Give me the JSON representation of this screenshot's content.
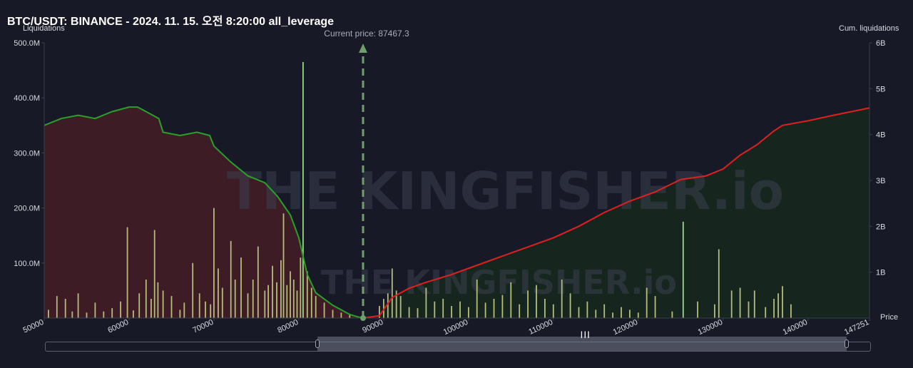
{
  "title": "BTC/USDT: BINANCE - 2024. 11. 15. 오전 8:20:00 all_leverage",
  "watermark": "THE KINGFISHER.io",
  "chart_data": {
    "type": "bar",
    "left_axis_title": "Liquidations",
    "right_axis_title": "Cum. liquidations",
    "x_axis_title": "Price",
    "xlim": [
      50000,
      147251
    ],
    "ylim_left": [
      0,
      500000000
    ],
    "ylim_right": [
      0,
      6000000000
    ],
    "x_ticks": [
      "50000",
      "60000",
      "70000",
      "80000",
      "90000",
      "100000",
      "110000",
      "120000",
      "130000",
      "140000",
      "147251"
    ],
    "left_ticks": [
      "500.0M",
      "400.0M",
      "300.0M",
      "200.0M",
      "100.0M"
    ],
    "right_ticks": [
      "6B",
      "5B",
      "4B",
      "3B",
      "2B",
      "1B"
    ],
    "current_price": 87467.3,
    "current_price_label": "Current price: 87467.3",
    "colors": {
      "short_cum_line": "#e02020",
      "long_cum_line": "#2aa02a",
      "long_fill": "#3d1c26",
      "short_fill": "#16261f",
      "bar_color": "#b5bd78",
      "highlight_bar_color": "#9ad888",
      "price_marker": "#6f9f6a"
    },
    "long_cum_curve": [
      [
        50000,
        4200000000.0
      ],
      [
        52000,
        4350000000.0
      ],
      [
        54000,
        4420000000.0
      ],
      [
        56000,
        4350000000.0
      ],
      [
        58000,
        4500000000.0
      ],
      [
        60000,
        4600000000.0
      ],
      [
        61000,
        4600000000.0
      ],
      [
        62000,
        4500000000.0
      ],
      [
        63500,
        4350000000.0
      ],
      [
        64000,
        4050000000.0
      ],
      [
        66000,
        3980000000.0
      ],
      [
        68000,
        4050000000.0
      ],
      [
        69500,
        3980000000.0
      ],
      [
        70000,
        3750000000.0
      ],
      [
        72000,
        3400000000.0
      ],
      [
        74000,
        3100000000.0
      ],
      [
        76000,
        2950000000.0
      ],
      [
        77500,
        2650000000.0
      ],
      [
        79000,
        2250000000.0
      ],
      [
        80000,
        1750000000.0
      ],
      [
        81000,
        950000000.0
      ],
      [
        82000,
        550000000.0
      ],
      [
        84000,
        280000000.0
      ],
      [
        86000,
        80000000.0
      ],
      [
        87467,
        0.0
      ]
    ],
    "short_cum_curve": [
      [
        87467,
        0.0
      ],
      [
        89500,
        50000000.0
      ],
      [
        91000,
        450000000.0
      ],
      [
        93000,
        650000000.0
      ],
      [
        95000,
        780000000.0
      ],
      [
        98000,
        950000000.0
      ],
      [
        101000,
        1150000000.0
      ],
      [
        104000,
        1350000000.0
      ],
      [
        107000,
        1550000000.0
      ],
      [
        110000,
        1750000000.0
      ],
      [
        113000,
        2000000000.0
      ],
      [
        116000,
        2300000000.0
      ],
      [
        119000,
        2550000000.0
      ],
      [
        122000,
        2750000000.0
      ],
      [
        125000,
        3020000000.0
      ],
      [
        128000,
        3100000000.0
      ],
      [
        130000,
        3250000000.0
      ],
      [
        132000,
        3550000000.0
      ],
      [
        134000,
        3780000000.0
      ],
      [
        136000,
        4080000000.0
      ],
      [
        137000,
        4200000000.0
      ],
      [
        140000,
        4300000000.0
      ],
      [
        143000,
        4420000000.0
      ],
      [
        147251,
        4580000000.0
      ]
    ],
    "bars": [
      [
        50500,
        15000000.0
      ],
      [
        51500,
        40000000.0
      ],
      [
        52500,
        35000000.0
      ],
      [
        53300,
        12000000.0
      ],
      [
        54000,
        45000000.0
      ],
      [
        55000,
        10000000.0
      ],
      [
        56000,
        28000000.0
      ],
      [
        57000,
        12000000.0
      ],
      [
        58000,
        18000000.0
      ],
      [
        59000,
        30000000.0
      ],
      [
        59800,
        165000000.0
      ],
      [
        60500,
        14000000.0
      ],
      [
        61200,
        45000000.0
      ],
      [
        62000,
        70000000.0
      ],
      [
        62600,
        35000000.0
      ],
      [
        63000,
        160000000.0
      ],
      [
        63400,
        65000000.0
      ],
      [
        64000,
        50000000.0
      ],
      [
        65000,
        40000000.0
      ],
      [
        66000,
        15000000.0
      ],
      [
        66500,
        28000000.0
      ],
      [
        67500,
        100000000.0
      ],
      [
        68300,
        45000000.0
      ],
      [
        69000,
        30000000.0
      ],
      [
        69600,
        25000000.0
      ],
      [
        70000,
        200000000.0
      ],
      [
        70500,
        90000000.0
      ],
      [
        71000,
        55000000.0
      ],
      [
        72000,
        140000000.0
      ],
      [
        72500,
        70000000.0
      ],
      [
        73200,
        110000000.0
      ],
      [
        74000,
        45000000.0
      ],
      [
        74600,
        70000000.0
      ],
      [
        75200,
        130000000.0
      ],
      [
        76000,
        50000000.0
      ],
      [
        76400,
        60000000.0
      ],
      [
        76900,
        95000000.0
      ],
      [
        77400,
        65000000.0
      ],
      [
        77900,
        105000000.0
      ],
      [
        78200,
        190000000.0
      ],
      [
        78600,
        60000000.0
      ],
      [
        79000,
        85000000.0
      ],
      [
        79400,
        70000000.0
      ],
      [
        79800,
        50000000.0
      ],
      [
        80200,
        110000000.0
      ],
      [
        80500,
        465000000.0
      ],
      [
        81000,
        85000000.0
      ],
      [
        81500,
        55000000.0
      ],
      [
        82000,
        40000000.0
      ],
      [
        83000,
        28000000.0
      ],
      [
        84000,
        15000000.0
      ],
      [
        85000,
        10000000.0
      ],
      [
        86000,
        6000000.0
      ],
      [
        89500,
        22000000.0
      ],
      [
        90000,
        35000000.0
      ],
      [
        90500,
        45000000.0
      ],
      [
        91000,
        90000000.0
      ],
      [
        91500,
        50000000.0
      ],
      [
        92000,
        40000000.0
      ],
      [
        93000,
        20000000.0
      ],
      [
        94000,
        18000000.0
      ],
      [
        95000,
        55000000.0
      ],
      [
        96000,
        30000000.0
      ],
      [
        97000,
        35000000.0
      ],
      [
        98000,
        22000000.0
      ],
      [
        99000,
        30000000.0
      ],
      [
        100000,
        20000000.0
      ],
      [
        101000,
        70000000.0
      ],
      [
        102000,
        28000000.0
      ],
      [
        103000,
        35000000.0
      ],
      [
        104000,
        42000000.0
      ],
      [
        105000,
        65000000.0
      ],
      [
        106000,
        25000000.0
      ],
      [
        107000,
        50000000.0
      ],
      [
        108000,
        60000000.0
      ],
      [
        109000,
        35000000.0
      ],
      [
        110000,
        25000000.0
      ],
      [
        111000,
        70000000.0
      ],
      [
        112000,
        45000000.0
      ],
      [
        113000,
        20000000.0
      ],
      [
        114000,
        30000000.0
      ],
      [
        115000,
        15000000.0
      ],
      [
        116000,
        25000000.0
      ],
      [
        117000,
        10000000.0
      ],
      [
        118000,
        20000000.0
      ],
      [
        119000,
        15000000.0
      ],
      [
        120000,
        10000000.0
      ],
      [
        121000,
        55000000.0
      ],
      [
        122000,
        40000000.0
      ],
      [
        124000,
        12000000.0
      ],
      [
        125300,
        175000000.0
      ],
      [
        127000,
        30000000.0
      ],
      [
        129000,
        25000000.0
      ],
      [
        129500,
        125000000.0
      ],
      [
        131000,
        50000000.0
      ],
      [
        132000,
        55000000.0
      ],
      [
        133000,
        30000000.0
      ],
      [
        133700,
        50000000.0
      ],
      [
        135000,
        20000000.0
      ],
      [
        136000,
        35000000.0
      ],
      [
        136500,
        45000000.0
      ],
      [
        137000,
        58000000.0
      ],
      [
        138000,
        25000000.0
      ]
    ]
  }
}
